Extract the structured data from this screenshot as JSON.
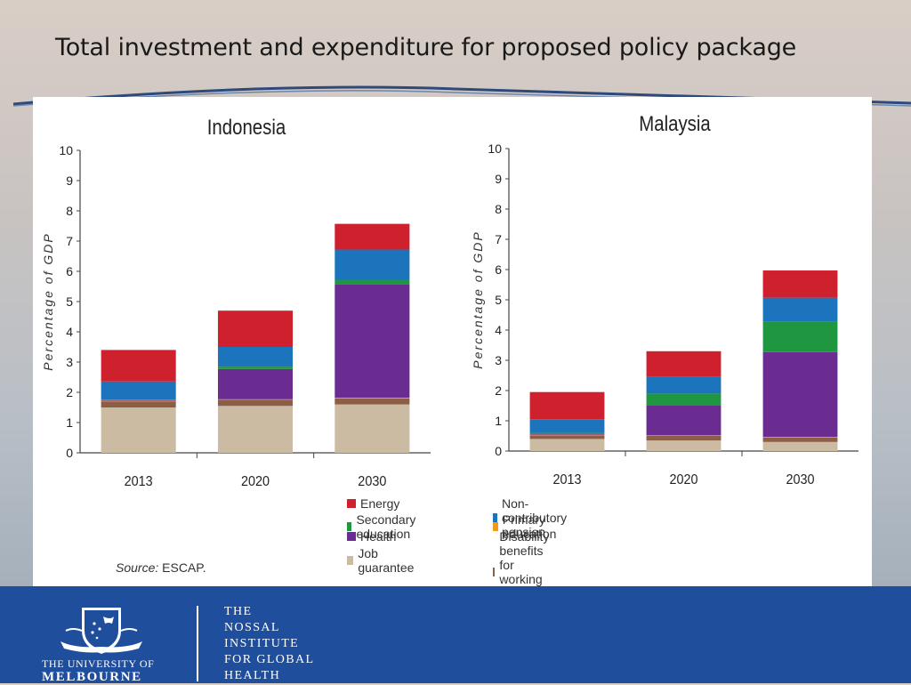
{
  "slide": {
    "title": "Total investment and expenditure for proposed policy package"
  },
  "chart_data": [
    {
      "type": "bar",
      "stacked": true,
      "title": "Indonesia",
      "ylabel": "Percentage of GDP",
      "ylim": [
        0,
        10
      ],
      "yticks": [
        0,
        1,
        2,
        3,
        4,
        5,
        6,
        7,
        8,
        9,
        10
      ],
      "categories": [
        "2013",
        "2020",
        "2030"
      ],
      "series": [
        {
          "name": "Job guarantee",
          "color": "#cbbba3",
          "values": [
            1.5,
            1.55,
            1.6
          ]
        },
        {
          "name": "Disability benefits for working age persons",
          "color": "#8b5e45",
          "values": [
            0.2,
            0.2,
            0.2
          ]
        },
        {
          "name": "Primary education",
          "color": "#f29a1e",
          "values": [
            0.02,
            0.02,
            0.02
          ]
        },
        {
          "name": "Health",
          "color": "#6b2c91",
          "values": [
            0.02,
            1.0,
            3.75
          ]
        },
        {
          "name": "Secondary education",
          "color": "#1f9640",
          "values": [
            0.02,
            0.08,
            0.15
          ]
        },
        {
          "name": "Non-contributory pension",
          "color": "#1c75bc",
          "values": [
            0.6,
            0.65,
            1.0
          ]
        },
        {
          "name": "Energy",
          "color": "#cf202e",
          "values": [
            1.04,
            1.2,
            0.85
          ]
        }
      ]
    },
    {
      "type": "bar",
      "stacked": true,
      "title": "Malaysia",
      "ylabel": "Percentage of GDP",
      "ylim": [
        0,
        10
      ],
      "yticks": [
        0,
        1,
        2,
        3,
        4,
        5,
        6,
        7,
        8,
        9,
        10
      ],
      "categories": [
        "2013",
        "2020",
        "2030"
      ],
      "series": [
        {
          "name": "Job guarantee",
          "color": "#cbbba3",
          "values": [
            0.4,
            0.35,
            0.3
          ]
        },
        {
          "name": "Disability benefits for working age persons",
          "color": "#8b5e45",
          "values": [
            0.12,
            0.15,
            0.15
          ]
        },
        {
          "name": "Primary education",
          "color": "#f29a1e",
          "values": [
            0.02,
            0.02,
            0.02
          ]
        },
        {
          "name": "Health",
          "color": "#6b2c91",
          "values": [
            0.02,
            0.98,
            2.8
          ]
        },
        {
          "name": "Secondary education",
          "color": "#1f9640",
          "values": [
            0.04,
            0.4,
            1.0
          ]
        },
        {
          "name": "Non-contributory pension",
          "color": "#1c75bc",
          "values": [
            0.45,
            0.55,
            0.8
          ]
        },
        {
          "name": "Energy",
          "color": "#cf202e",
          "values": [
            0.9,
            0.85,
            0.9
          ]
        }
      ]
    }
  ],
  "legend": {
    "col1": [
      "Energy",
      "Secondary education",
      "Health",
      "Job guarantee"
    ],
    "col2": [
      "Non-contributory pension",
      "Primary education",
      "Disability benefits for working age persons"
    ],
    "colors": {
      "Energy": "#cf202e",
      "Secondary education": "#1f9640",
      "Health": "#6b2c91",
      "Job guarantee": "#cbbba3",
      "Non-contributory pension": "#1c75bc",
      "Primary education": "#f29a1e",
      "Disability benefits for working age persons": "#8b5e45"
    }
  },
  "source": {
    "label": "Source",
    "text": "ESCAP."
  },
  "footer": {
    "university_line1": "THE UNIVERSITY OF",
    "university_line2": "MELBOURNE",
    "institute_lines": [
      "THE",
      "NOSSAL",
      "INSTITUTE",
      "FOR GLOBAL",
      "HEALTH"
    ],
    "colors": {
      "background": "#1f4e9c"
    }
  }
}
